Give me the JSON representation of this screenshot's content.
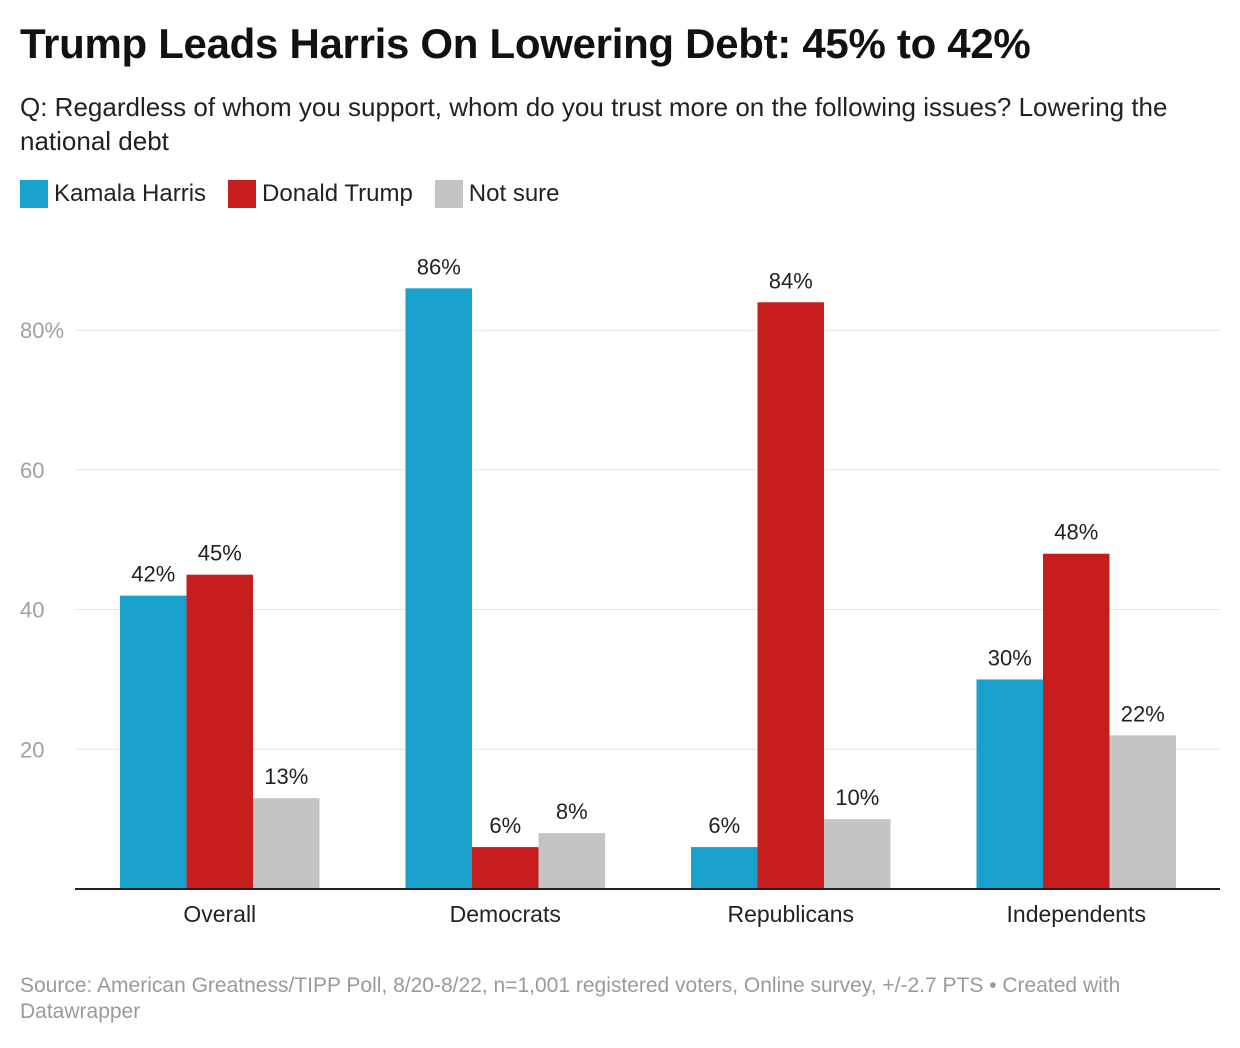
{
  "chart_data": {
    "type": "bar",
    "title": "Trump Leads Harris On Lowering Debt: 45% to 42%",
    "subtitle": "Q: Regardless of whom you support, whom do you trust more on the following issues? Lowering the national debt",
    "categories": [
      "Overall",
      "Democrats",
      "Republicans",
      "Independents"
    ],
    "series": [
      {
        "name": "Kamala Harris",
        "color": "#18a1cd",
        "values": [
          42,
          86,
          6,
          30
        ],
        "labels": [
          "42%",
          "86%",
          "6%",
          "30%"
        ]
      },
      {
        "name": "Donald Trump",
        "color": "#c71e1d",
        "values": [
          45,
          6,
          84,
          48
        ],
        "labels": [
          "45%",
          "6%",
          "84%",
          "48%"
        ]
      },
      {
        "name": "Not sure",
        "color": "#c4c4c4",
        "values": [
          13,
          8,
          10,
          22
        ],
        "labels": [
          "13%",
          "8%",
          "10%",
          "22%"
        ]
      }
    ],
    "yticks": [
      20,
      40,
      60,
      80
    ],
    "ytick_labels": [
      "20",
      "40",
      "60",
      "80%"
    ],
    "ylim": [
      0,
      88
    ],
    "xlabel": "",
    "ylabel": "",
    "grid": true,
    "legend_position": "top-left"
  },
  "source": "Source: American Greatness/TIPP Poll, 8/20-8/22, n=1,001 registered voters, Online survey, +/-2.7 PTS • Created with Datawrapper"
}
